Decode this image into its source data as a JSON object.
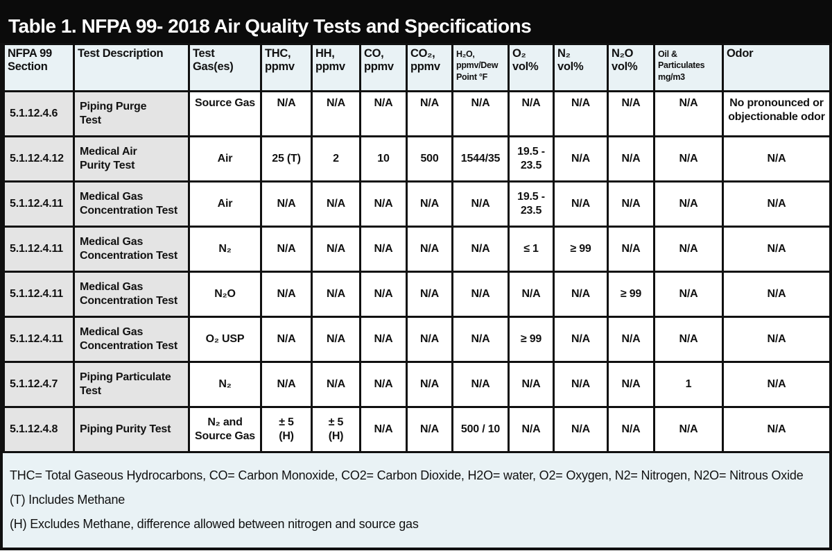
{
  "title": "Table 1. NFPA 99- 2018 Air Quality Tests and Specifications",
  "table": {
    "columns": [
      {
        "label": "NFPA 99\nSection"
      },
      {
        "label": "Test Description"
      },
      {
        "label": "Test\nGas(es)"
      },
      {
        "label": "THC,\nppmv"
      },
      {
        "label": "HH,\nppmv"
      },
      {
        "label": "CO,\nppmv"
      },
      {
        "label": "CO₂,\nppmv"
      },
      {
        "label": "H₂O,\nppmv/Dew\nPoint °F"
      },
      {
        "label": "O₂\nvol%"
      },
      {
        "label": "N₂\nvol%"
      },
      {
        "label": "N₂O\nvol%"
      },
      {
        "label": "Oil &\nParticulates\nmg/m3"
      },
      {
        "label": "Odor"
      }
    ],
    "rows": [
      [
        "5.1.12.4.6",
        "Piping Purge\nTest",
        "Source Gas",
        "N/A",
        "N/A",
        "N/A",
        "N/A",
        "N/A",
        "N/A",
        "N/A",
        "N/A",
        "N/A",
        "No pronounced or\nobjectionable odor"
      ],
      [
        "5.1.12.4.12",
        "Medical Air\nPurity Test",
        "Air",
        "25 (T)",
        "2",
        "10",
        "500",
        "1544/35",
        "19.5 -\n23.5",
        "N/A",
        "N/A",
        "N/A",
        "N/A"
      ],
      [
        "5.1.12.4.11",
        "Medical Gas\nConcentration Test",
        "Air",
        "N/A",
        "N/A",
        "N/A",
        "N/A",
        "N/A",
        "19.5 -\n23.5",
        "N/A",
        "N/A",
        "N/A",
        "N/A"
      ],
      [
        "5.1.12.4.11",
        "Medical Gas\nConcentration Test",
        "N₂",
        "N/A",
        "N/A",
        "N/A",
        "N/A",
        "N/A",
        "≤ 1",
        "≥ 99",
        "N/A",
        "N/A",
        "N/A"
      ],
      [
        "5.1.12.4.11",
        "Medical Gas\nConcentration Test",
        "N₂O",
        "N/A",
        "N/A",
        "N/A",
        "N/A",
        "N/A",
        "N/A",
        "N/A",
        "≥ 99",
        "N/A",
        "N/A"
      ],
      [
        "5.1.12.4.11",
        "Medical Gas\nConcentration Test",
        "O₂ USP",
        "N/A",
        "N/A",
        "N/A",
        "N/A",
        "N/A",
        "≥ 99",
        "N/A",
        "N/A",
        "N/A",
        "N/A"
      ],
      [
        "5.1.12.4.7",
        "Piping Particulate\nTest",
        "N₂",
        "N/A",
        "N/A",
        "N/A",
        "N/A",
        "N/A",
        "N/A",
        "N/A",
        "N/A",
        "1",
        "N/A"
      ],
      [
        "5.1.12.4.8",
        "Piping Purity Test",
        "N₂ and\nSource Gas",
        "± 5\n(H)",
        "± 5\n(H)",
        "N/A",
        "N/A",
        "500 / 10",
        "N/A",
        "N/A",
        "N/A",
        "N/A",
        "N/A"
      ]
    ]
  },
  "footnotes": [
    "THC= Total Gaseous Hydrocarbons, CO= Carbon Monoxide, CO2= Carbon Dioxide, H2O= water, O2= Oxygen, N2= Nitrogen, N2O= Nitrous Oxide",
    "(T) Includes Methane",
    "(H) Excludes Methane, difference allowed between nitrogen and source gas"
  ],
  "colors": {
    "title_bar_bg": "#0b0b0b",
    "title_text": "#ffffff",
    "header_bg": "#e9f2f5",
    "shaded_column_bg": "#e4e4e4",
    "footnote_bg": "#e9f2f5",
    "cell_bg": "#ffffff",
    "border": "#101010"
  }
}
